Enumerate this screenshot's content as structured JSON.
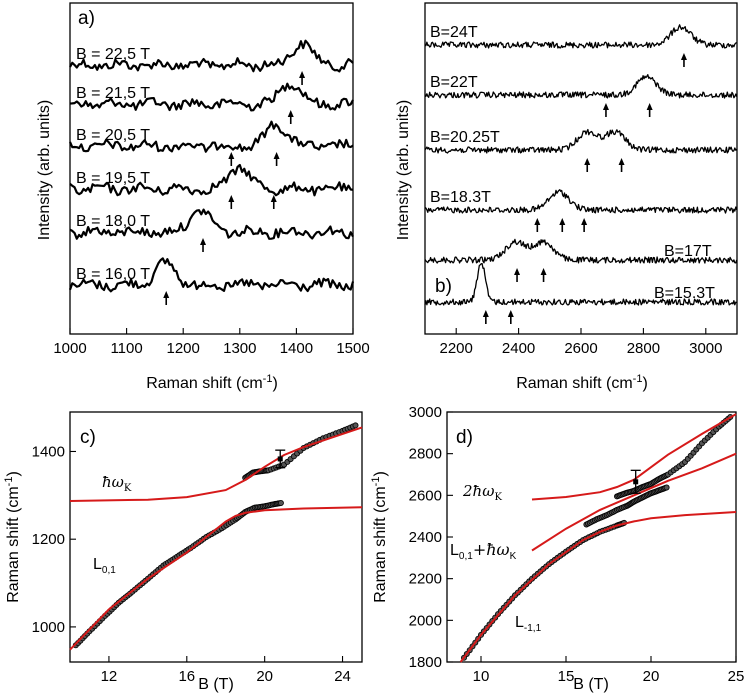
{
  "chart_data": [
    {
      "id": "a",
      "type": "line",
      "panel_label": "a)",
      "xlabel": "Raman shift (cm",
      "xlabel_sup": "-1",
      "xlabel_end": ")",
      "ylabel": "Intensity (arb. units)",
      "xlim": [
        1000,
        1500
      ],
      "xticks": [
        "1000",
        "1100",
        "1200",
        "1300",
        "1400",
        "1500"
      ],
      "series": [
        {
          "name": "B = 22,5 T",
          "peak": 1410,
          "arrows": [
            1410
          ]
        },
        {
          "name": "B = 21,5 T",
          "peak": 1390,
          "arrows": [
            1390
          ]
        },
        {
          "name": "B = 20,5 T",
          "peak": 1365,
          "arrows": [
            1285,
            1365
          ]
        },
        {
          "name": "B = 19,5 T",
          "peak": 1300,
          "arrows": [
            1285,
            1360
          ]
        },
        {
          "name": "B = 18,0 T",
          "peak": 1230,
          "arrows": [
            1235
          ]
        },
        {
          "name": "B = 16,0 T",
          "peak": 1168,
          "arrows": [
            1170
          ]
        }
      ]
    },
    {
      "id": "b",
      "type": "line",
      "panel_label": "b)",
      "xlabel": "Raman shift (cm",
      "xlabel_sup": "-1",
      "xlabel_end": ")",
      "ylabel": "Intensity (arb. units)",
      "xlim": [
        2100,
        3100
      ],
      "xticks": [
        "2200",
        "2400",
        "2600",
        "2800",
        "3000"
      ],
      "series": [
        {
          "name": "B=24T",
          "peaks": [
            2920
          ],
          "arrows": [
            2930
          ]
        },
        {
          "name": "B=22T",
          "peaks": [
            2810
          ],
          "arrows": [
            2680,
            2820
          ]
        },
        {
          "name": "B=20.25T",
          "peaks": [
            2620,
            2710
          ],
          "arrows": [
            2620,
            2730
          ]
        },
        {
          "name": "B=18.3T",
          "peaks": [
            2530
          ],
          "arrows": [
            2460,
            2540,
            2610
          ]
        },
        {
          "name": "B=17T",
          "peaks": [
            2390,
            2480
          ],
          "arrows": [
            2395,
            2480
          ]
        },
        {
          "name": "B=15.3T",
          "peaks": [
            2280
          ],
          "arrows": [
            2295,
            2375
          ]
        }
      ]
    },
    {
      "id": "c",
      "type": "scatter",
      "panel_label": "c)",
      "xlabel": "B (T)",
      "ylabel": "Raman shift (cm",
      "ylabel_sup": "-1",
      "ylabel_end": ")",
      "xlim": [
        10,
        25
      ],
      "ylim": [
        920,
        1490
      ],
      "xticks": [
        "12",
        "16",
        "20",
        "24"
      ],
      "yticks": [
        "1000",
        "1200",
        "1400"
      ],
      "annotations": {
        "hw_k": "ħω",
        "hw_k_sub": "K",
        "l01": "L",
        "l01_sub": "0,1"
      },
      "error_bar": {
        "x": 20.8,
        "y": 1383,
        "err": 20
      },
      "series": [
        {
          "name": "fit-lower",
          "x": [
            10,
            12,
            14,
            16,
            17,
            18,
            18.5,
            19,
            20,
            22,
            25
          ],
          "y": [
            948,
            1040,
            1110,
            1170,
            1205,
            1240,
            1253,
            1260,
            1266,
            1270,
            1273
          ]
        },
        {
          "name": "fit-upper",
          "x": [
            10,
            14,
            16,
            18,
            19,
            20,
            21,
            22,
            25
          ],
          "y": [
            1287,
            1290,
            1296,
            1312,
            1335,
            1365,
            1392,
            1410,
            1455
          ]
        },
        {
          "name": "data-lower",
          "x": [
            10.3,
            11,
            11.8,
            12.5,
            13.2,
            14,
            14.8,
            15.5,
            16.2,
            17,
            17.8,
            18.5,
            19,
            19.5,
            20,
            20.5,
            20.9
          ],
          "y": [
            958,
            990,
            1025,
            1055,
            1080,
            1110,
            1140,
            1160,
            1180,
            1205,
            1225,
            1245,
            1262,
            1272,
            1275,
            1280,
            1283
          ]
        },
        {
          "name": "data-upper",
          "x": [
            19,
            19.4,
            19.8,
            20.2,
            21,
            22,
            23,
            24,
            24.8
          ],
          "y": [
            1340,
            1352,
            1355,
            1357,
            1370,
            1408,
            1430,
            1447,
            1462
          ]
        }
      ]
    },
    {
      "id": "d",
      "type": "scatter",
      "panel_label": "d)",
      "xlabel": "B (T)",
      "ylabel": "Raman shift (cm",
      "ylabel_sup": "-1",
      "ylabel_end": ")",
      "xlim": [
        8,
        25
      ],
      "ylim": [
        1800,
        3000
      ],
      "xticks": [
        "10",
        "15",
        "20",
        "25"
      ],
      "yticks": [
        "1800",
        "2000",
        "2200",
        "2400",
        "2600",
        "2800",
        "3000"
      ],
      "annotations": {
        "two_hw": "2ħω",
        "two_hw_sub": "K",
        "lsum": "L",
        "lsum_sub": "0,1",
        "lsum_plus": "+ħω",
        "lsum_plus_sub": "K",
        "lm11": "L",
        "lm11_sub": "-1,1"
      },
      "error_bar": {
        "x": 19.1,
        "y": 2665,
        "err": 55
      },
      "series": [
        {
          "name": "fit-low",
          "x": [
            8.8,
            10,
            12,
            14,
            16,
            17,
            18,
            19,
            20,
            22,
            25
          ],
          "y": [
            1800,
            1930,
            2120,
            2270,
            2385,
            2425,
            2455,
            2475,
            2490,
            2505,
            2520
          ]
        },
        {
          "name": "fit-mid",
          "x": [
            13,
            15,
            17,
            19,
            21,
            23,
            25
          ],
          "y": [
            2335,
            2440,
            2530,
            2600,
            2670,
            2730,
            2800
          ]
        },
        {
          "name": "fit-up",
          "x": [
            13,
            15,
            17,
            18,
            19,
            20,
            21,
            23,
            25
          ],
          "y": [
            2580,
            2592,
            2615,
            2640,
            2675,
            2735,
            2795,
            2895,
            2990
          ]
        },
        {
          "name": "data-low",
          "x": [
            9,
            10,
            11,
            12,
            13,
            14,
            15,
            16,
            17,
            18,
            18.5
          ],
          "y": [
            1820,
            1930,
            2030,
            2120,
            2200,
            2270,
            2330,
            2385,
            2425,
            2455,
            2470
          ]
        },
        {
          "name": "data-mid",
          "x": [
            16.2,
            16.8,
            17.4,
            18,
            18.6,
            19,
            19.5,
            20,
            20.5,
            21
          ],
          "y": [
            2460,
            2485,
            2505,
            2530,
            2550,
            2570,
            2590,
            2610,
            2625,
            2640
          ]
        },
        {
          "name": "data-up",
          "x": [
            18,
            18.5,
            19,
            19.5,
            20,
            20.5,
            21,
            22,
            23,
            24,
            24.8
          ],
          "y": [
            2595,
            2610,
            2622,
            2640,
            2655,
            2680,
            2700,
            2760,
            2850,
            2930,
            2985
          ]
        }
      ]
    }
  ]
}
